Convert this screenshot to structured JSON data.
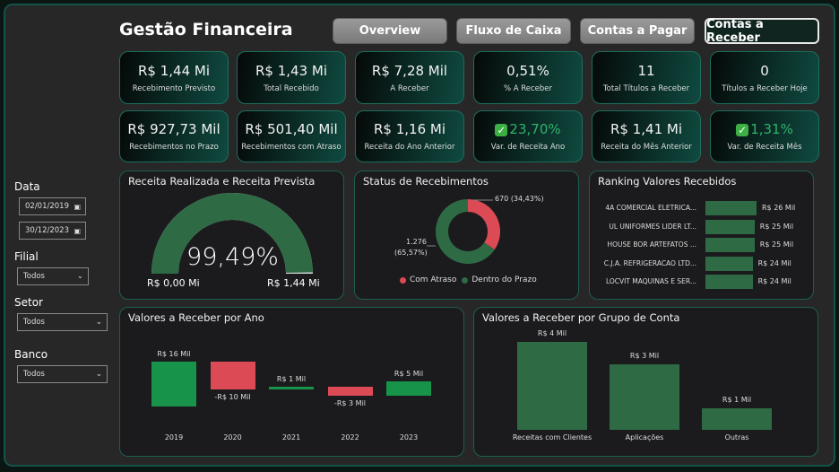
{
  "header": {
    "title": "Gestão Financeira",
    "nav": [
      {
        "label": "Overview",
        "active": false
      },
      {
        "label": "Fluxo de Caixa",
        "active": false
      },
      {
        "label": "Contas a Pagar",
        "active": false
      },
      {
        "label": "Contas a Receber",
        "active": true
      }
    ]
  },
  "kpis": [
    {
      "value": "R$ 1,44 Mi",
      "label": "Recebimento Previsto"
    },
    {
      "value": "R$ 1,43 Mi",
      "label": "Total Recebido"
    },
    {
      "value": "R$ 7,28 Mil",
      "label": "A Receber"
    },
    {
      "value": "0,51%",
      "label": "% A Receber"
    },
    {
      "value": "11",
      "label": "Total Títulos a Receber"
    },
    {
      "value": "0",
      "label": "Títulos a Receber Hoje"
    },
    {
      "value": "R$ 927,73 Mil",
      "label": "Recebimentos no Prazo"
    },
    {
      "value": "R$ 501,40 Mil",
      "label": "Recebimentos com Atraso"
    },
    {
      "value": "R$ 1,16 Mi",
      "label": "Receita do Ano Anterior"
    },
    {
      "value": "23,70%",
      "label": "Var. de Receita Ano",
      "icon": "check-mark-icon"
    },
    {
      "value": "R$ 1,41 Mi",
      "label": "Receita do Mês Anterior"
    },
    {
      "value": "1,31%",
      "label": "Var. de Receita Mês",
      "icon": "check-mark-icon"
    }
  ],
  "filters": {
    "date_label": "Data",
    "date_start": "02/01/2019",
    "date_end": "30/12/2023",
    "filial_label": "Filial",
    "filial_value": "Todos",
    "setor_label": "Setor",
    "setor_value": "Todos",
    "banco_label": "Banco",
    "banco_value": "Todos"
  },
  "colors": {
    "green": "#2e6b45",
    "bright_green": "#17934a",
    "red": "#dc4a55",
    "accent": "#1d5e50"
  },
  "chart_data": [
    {
      "type": "gauge",
      "title": "Receita Realizada e Receita Prevista",
      "value_label": "99,49%",
      "value": 99.49,
      "min_label": "R$ 0,00 Mi",
      "max_label": "R$ 1,44 Mi"
    },
    {
      "type": "pie",
      "title": "Status de Recebimentos",
      "slices": [
        {
          "name": "Com Atraso",
          "value": 670,
          "label": "670 (34,43%)",
          "color": "#dc4a55"
        },
        {
          "name": "Dentro do Prazo",
          "value": 1276,
          "label_a": "1.276",
          "label_b": "(65,57%)",
          "color": "#2e6b45"
        }
      ]
    },
    {
      "type": "bar",
      "title": "Ranking Valores Recebidos",
      "categories": [
        "4A COMERCIAL ELETRICA...",
        "UL UNIFORMES LIDER LT...",
        "HOUSE BOR ARTEFATOS ...",
        "C.J.A. REFRIGERACAO LTD...",
        "LOCVIT MAQUINAS E SER..."
      ],
      "values": [
        26,
        25,
        25,
        24,
        24
      ],
      "labels": [
        "R$ 26 Mil",
        "R$ 25 Mil",
        "R$ 25 Mil",
        "R$ 24 Mil",
        "R$ 24 Mil"
      ]
    },
    {
      "type": "waterfall",
      "title": "Valores a Receber por Ano",
      "categories": [
        "2019",
        "2020",
        "2021",
        "2022",
        "2023"
      ],
      "values": [
        16,
        -10,
        1,
        -3,
        5
      ],
      "labels": [
        "R$ 16 Mil",
        "-R$ 10 Mil",
        "R$ 1 Mil",
        "-R$ 3 Mil",
        "R$ 5 Mil"
      ]
    },
    {
      "type": "bar",
      "title": "Valores a Receber por Grupo de Conta",
      "categories": [
        "Receitas com Clientes",
        "Aplicações",
        "Outras"
      ],
      "values": [
        4,
        3,
        1
      ],
      "labels": [
        "R$ 4 Mil",
        "R$ 3 Mil",
        "R$ 1 Mil"
      ]
    }
  ]
}
